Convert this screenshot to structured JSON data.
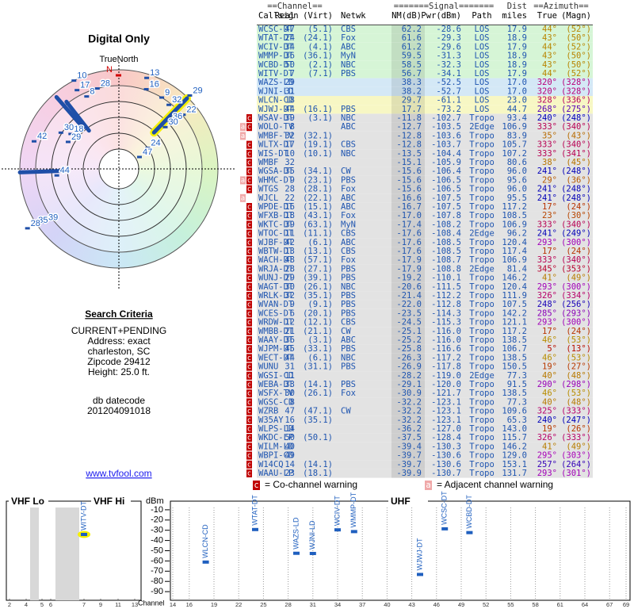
{
  "header": {
    "title": "Digital Only",
    "north_label": "TrueNorth",
    "north_marker": "N"
  },
  "polar": {
    "points": [
      {
        "label": "10",
        "azimuth": 333,
        "r": 1.0
      },
      {
        "label": "17",
        "azimuth": 332,
        "r": 0.9
      },
      {
        "label": "8",
        "azimuth": 336,
        "r": 0.8
      },
      {
        "label": "28",
        "azimuth": 345,
        "r": 0.84
      },
      {
        "label": "13",
        "azimuth": 17,
        "r": 0.96
      },
      {
        "label": "16",
        "azimuth": 19,
        "r": 0.85
      },
      {
        "label": "9",
        "azimuth": 31,
        "r": 0.84
      },
      {
        "label": "32",
        "azimuth": 38,
        "r": 0.82
      },
      {
        "label": "29",
        "azimuth": 44,
        "r": 1.03
      },
      {
        "label": "22",
        "azimuth": 50,
        "r": 0.85
      },
      {
        "label": "36",
        "azimuth": 47,
        "r": 0.7
      },
      {
        "label": "30",
        "azimuth": 48,
        "r": 0.63
      },
      {
        "label": "24",
        "azimuth": 54,
        "r": 0.36
      },
      {
        "label": "47",
        "azimuth": 60,
        "r": 0.24
      },
      {
        "label": "42",
        "azimuth": 288,
        "r": 0.9
      },
      {
        "label": "44",
        "azimuth": 264,
        "r": 0.63
      },
      {
        "label": "39",
        "azimuth": 234,
        "r": 0.92
      },
      {
        "label": "35",
        "azimuth": 236,
        "r": 1.02
      },
      {
        "label": "28",
        "azimuth": 237,
        "r": 1.1
      },
      {
        "label": "30",
        "azimuth": 302,
        "r": 0.69
      },
      {
        "label": "18",
        "azimuth": 306,
        "r": 0.6
      },
      {
        "label": "29",
        "azimuth": 298,
        "r": 0.58
      }
    ],
    "bars": [
      {
        "azimuth": 44,
        "from": 0.51,
        "to": 0.99,
        "highlight": true
      },
      {
        "azimuth": 268,
        "from": 0.6,
        "to": 1.0,
        "highlight": false
      },
      {
        "azimuth": 319,
        "from": 0.55,
        "to": 0.96,
        "highlight": false
      },
      {
        "azimuth": 322,
        "from": 0.49,
        "to": 0.86,
        "highlight": false
      }
    ]
  },
  "search": {
    "title": "Search Criteria",
    "lines": [
      "CURRENT+PENDING",
      "Address: exact",
      "charleston, SC",
      "Zipcode 29412",
      "Height: 25.0 ft."
    ],
    "datecode_title": "db datecode",
    "datecode": "201204091018"
  },
  "link": "www.tvfool.com",
  "table": {
    "group_headers": [
      "==Channel==",
      "=======Signal=======",
      "Dist",
      "==Azimuth=="
    ],
    "columns": [
      "Callsign",
      "Real",
      "(Virt)",
      "Netwk",
      "NM(dB)",
      "Pwr(dBm)",
      "Path",
      "miles",
      "True",
      "(Magn)"
    ],
    "rows": [
      [
        "WCSC-DT",
        "47",
        "(5.1)",
        "CBS",
        "62.2",
        "-28.6",
        "LOS",
        "17.9",
        "44°",
        "(52°)"
      ],
      [
        "WTAT-DT",
        "24",
        "(24.1)",
        "Fox",
        "61.6",
        "-29.3",
        "LOS",
        "18.9",
        "43°",
        "(50°)"
      ],
      [
        "WCIV-DT",
        "34",
        "(4.1)",
        "ABC",
        "61.2",
        "-29.6",
        "LOS",
        "17.9",
        "44°",
        "(52°)"
      ],
      [
        "WMMP-DT",
        "36",
        "(36.1)",
        "MyN",
        "59.5",
        "-31.3",
        "LOS",
        "18.9",
        "43°",
        "(50°)"
      ],
      [
        "WCBD-DT",
        "50",
        "(2.1)",
        "NBC",
        "58.5",
        "-32.3",
        "LOS",
        "18.9",
        "43°",
        "(50°)"
      ],
      [
        "WITV-DT",
        "7",
        "(7.1)",
        "PBS",
        "56.7",
        "-34.1",
        "LOS",
        "17.9",
        "44°",
        "(52°)"
      ],
      [
        "WAZS-LD",
        "29",
        null,
        null,
        "38.3",
        "-52.5",
        "LOS",
        "17.0",
        "320°",
        "(328°)"
      ],
      [
        "WJNI-LD",
        "31",
        null,
        null,
        "38.2",
        "-52.7",
        "LOS",
        "17.0",
        "320°",
        "(328°)"
      ],
      [
        "WLCN-CD",
        "18",
        null,
        null,
        "29.7",
        "-61.1",
        "LOS",
        "23.0",
        "328°",
        "(336°)"
      ],
      [
        "WJWJ-DT",
        "44",
        "(16.1)",
        "PBS",
        "17.7",
        "-73.2",
        "LOS",
        "44.7",
        "268°",
        "(275°)"
      ],
      [
        "WSAV-DT",
        "39",
        "(3.1)",
        "NBC",
        "-11.8",
        "-102.7",
        "Tropo",
        "93.4",
        "240°",
        "(248°)"
      ],
      [
        "WOLO-TV",
        "8",
        null,
        "ABC",
        "-12.7",
        "-103.5",
        "2Edge",
        "106.9",
        "333°",
        "(340°)"
      ],
      [
        "WMBF-TV",
        "32",
        "(32.1)",
        null,
        "-12.8",
        "-103.6",
        "Tropo",
        "83.9",
        "35°",
        "(43°)"
      ],
      [
        "WLTX-DT",
        "17",
        "(19.1)",
        "CBS",
        "-12.8",
        "-103.7",
        "Tropo",
        "105.7",
        "333°",
        "(340°)"
      ],
      [
        "WIS-DT",
        "10",
        "(10.1)",
        "NBC",
        "-13.5",
        "-104.4",
        "Tropo",
        "107.2",
        "333°",
        "(341°)"
      ],
      [
        "WMBF",
        "32",
        null,
        null,
        "-15.1",
        "-105.9",
        "Tropo",
        "80.6",
        "38°",
        "(45°)"
      ],
      [
        "WGSA-DT",
        "35",
        "(34.1)",
        "CW",
        "-15.6",
        "-106.4",
        "Tropo",
        "96.0",
        "241°",
        "(248°)"
      ],
      [
        "WHMC-DT",
        "9",
        "(23.1)",
        "PBS",
        "-15.6",
        "-106.5",
        "Tropo",
        "95.6",
        "29°",
        "(36°)"
      ],
      [
        "WTGS",
        "28",
        "(28.1)",
        "Fox",
        "-15.6",
        "-106.5",
        "Tropo",
        "96.0",
        "241°",
        "(248°)"
      ],
      [
        "WJCL",
        "22",
        "(22.1)",
        "ABC",
        "-16.6",
        "-107.5",
        "Tropo",
        "95.5",
        "241°",
        "(248°)"
      ],
      [
        "WPDE-DT",
        "16",
        "(15.1)",
        "ABC",
        "-16.7",
        "-107.5",
        "Tropo",
        "117.2",
        "17°",
        "(24°)"
      ],
      [
        "WFXB-DT",
        "18",
        "(43.1)",
        "Fox",
        "-17.0",
        "-107.8",
        "Tropo",
        "108.5",
        "23°",
        "(30°)"
      ],
      [
        "WKTC-DT",
        "39",
        "(63.1)",
        "MyN",
        "-17.4",
        "-108.2",
        "Tropo",
        "106.9",
        "333°",
        "(340°)"
      ],
      [
        "WTOC-DT",
        "11",
        "(11.1)",
        "CBS",
        "-17.6",
        "-108.4",
        "2Edge",
        "96.2",
        "241°",
        "(249°)"
      ],
      [
        "WJBF-DT",
        "42",
        "(6.1)",
        "ABC",
        "-17.6",
        "-108.5",
        "Tropo",
        "120.4",
        "293°",
        "(300°)"
      ],
      [
        "WBTW-DT",
        "13",
        "(13.1)",
        "CBS",
        "-17.6",
        "-108.5",
        "Tropo",
        "117.4",
        "17°",
        "(24°)"
      ],
      [
        "WACH-DT",
        "48",
        "(57.1)",
        "Fox",
        "-17.9",
        "-108.7",
        "Tropo",
        "106.9",
        "333°",
        "(340°)"
      ],
      [
        "WRJA-DT",
        "28",
        "(27.1)",
        "PBS",
        "-17.9",
        "-108.8",
        "2Edge",
        "81.4",
        "345°",
        "(353°)"
      ],
      [
        "WUNJ-DT",
        "29",
        "(39.1)",
        "PBS",
        "-19.2",
        "-110.1",
        "Tropo",
        "146.2",
        "41°",
        "(49°)"
      ],
      [
        "WAGT-DT",
        "30",
        "(26.1)",
        "NBC",
        "-20.6",
        "-111.5",
        "Tropo",
        "120.4",
        "293°",
        "(300°)"
      ],
      [
        "WRLK-DT",
        "32",
        "(35.1)",
        "PBS",
        "-21.4",
        "-112.2",
        "Tropo",
        "111.9",
        "326°",
        "(334°)"
      ],
      [
        "WVAN-DT",
        "9",
        "(9.1)",
        "PBS",
        "-22.0",
        "-112.8",
        "Tropo",
        "107.5",
        "248°",
        "(256°)"
      ],
      [
        "WCES-DT",
        "6",
        "(20.1)",
        "PBS",
        "-23.5",
        "-114.3",
        "Tropo",
        "142.2",
        "285°",
        "(293°)"
      ],
      [
        "WRDW-DT",
        "12",
        "(12.1)",
        "CBS",
        "-24.5",
        "-115.3",
        "Tropo",
        "121.1",
        "293°",
        "(300°)"
      ],
      [
        "WMBB-DT",
        "21",
        "(21.1)",
        "CW",
        "-25.1",
        "-116.0",
        "Tropo",
        "117.2",
        "17°",
        "(24°)"
      ],
      [
        "WAAY-DT",
        "36",
        "(3.1)",
        "ABC",
        "-25.2",
        "-116.0",
        "Tropo",
        "138.5",
        "46°",
        "(53°)"
      ],
      [
        "WJPM-DT",
        "45",
        "(33.1)",
        "PBS",
        "-25.8",
        "-116.6",
        "Tropo",
        "106.7",
        "5°",
        "(13°)"
      ],
      [
        "WECT-DT",
        "44",
        "(6.1)",
        "NBC",
        "-26.3",
        "-117.2",
        "Tropo",
        "138.5",
        "46°",
        "(53°)"
      ],
      [
        "WUNU",
        "31",
        "(31.1)",
        "PBS",
        "-26.9",
        "-117.8",
        "Tropo",
        "150.5",
        "19°",
        "(27°)"
      ],
      [
        "WGSI-CD",
        "11",
        null,
        null,
        "-28.2",
        "-119.0",
        "2Edge",
        "77.3",
        "40°",
        "(48°)"
      ],
      [
        "WEBA-DT",
        "33",
        "(14.1)",
        "PBS",
        "-29.1",
        "-120.0",
        "Tropo",
        "91.5",
        "290°",
        "(298°)"
      ],
      [
        "WSFX-TV",
        "30",
        "(26.1)",
        "Fox",
        "-30.9",
        "-121.7",
        "Tropo",
        "138.5",
        "46°",
        "(53°)"
      ],
      [
        "WGSC-CD",
        "8",
        null,
        null,
        "-32.2",
        "-123.1",
        "Tropo",
        "77.3",
        "40°",
        "(48°)"
      ],
      [
        "WZRB",
        "47",
        "(47.1)",
        "CW",
        "-32.2",
        "-123.1",
        "Tropo",
        "109.6",
        "325°",
        "(333°)"
      ],
      [
        "W35AY",
        "16",
        "(35.1)",
        null,
        "-32.2",
        "-123.1",
        "Tropo",
        "65.3",
        "240°",
        "(247°)"
      ],
      [
        "WLPS-LD",
        "14",
        null,
        null,
        "-36.2",
        "-127.0",
        "Tropo",
        "143.0",
        "19°",
        "(26°)"
      ],
      [
        "WKDC-LP",
        "50",
        "(50.1)",
        null,
        "-37.5",
        "-128.4",
        "Tropo",
        "115.7",
        "326°",
        "(333°)"
      ],
      [
        "WILM-LD",
        "40",
        null,
        null,
        "-39.4",
        "-130.3",
        "Tropo",
        "146.2",
        "41°",
        "(49°)"
      ],
      [
        "WBPI-CD",
        "49",
        null,
        null,
        "-39.7",
        "-130.6",
        "Tropo",
        "129.0",
        "295°",
        "(303°)"
      ],
      [
        "W14CQ",
        "14",
        "(14.1)",
        null,
        "-39.7",
        "-130.6",
        "Tropo",
        "153.1",
        "257°",
        "(264°)"
      ],
      [
        "WAAU-LP",
        "23",
        "(18.1)",
        null,
        "-39.9",
        "-130.7",
        "Tropo",
        "131.7",
        "293°",
        "(301°)"
      ]
    ],
    "warnings": [
      [],
      [],
      [],
      [],
      [],
      [],
      [],
      [],
      [],
      [],
      [
        "c"
      ],
      [
        "a",
        "c"
      ],
      [
        "a"
      ],
      [
        "c"
      ],
      [
        "c"
      ],
      [
        "c"
      ],
      [
        "c"
      ],
      [
        "a",
        "c"
      ],
      [
        "c"
      ],
      [
        "a"
      ],
      [
        "c"
      ],
      [
        "c"
      ],
      [
        "c"
      ],
      [
        "c"
      ],
      [
        "c"
      ],
      [
        "c"
      ],
      [
        "c"
      ],
      [
        "c"
      ],
      [
        "c"
      ],
      [
        "c"
      ],
      [
        "c"
      ],
      [
        "c"
      ],
      [
        "c"
      ],
      [
        "c"
      ],
      [
        "c"
      ],
      [
        "c"
      ],
      [
        "c"
      ],
      [
        "c"
      ],
      [
        "c"
      ],
      [
        "c"
      ],
      [
        "c"
      ],
      [
        "c"
      ],
      [
        "c"
      ],
      [
        "c"
      ],
      [
        "c"
      ],
      [
        "c"
      ],
      [
        "c"
      ],
      [
        "c"
      ],
      [
        "c"
      ],
      [
        "c"
      ],
      [
        "c"
      ]
    ]
  },
  "legend": {
    "co_channel": {
      "marker": "c",
      "text": "= Co-channel warning"
    },
    "adjacent": {
      "marker": "a",
      "text": "= Adjacent channel warning"
    }
  },
  "chart_data": [
    {
      "type": "spectrum",
      "titles": [
        "VHF Lo",
        "VHF Hi"
      ],
      "x": [
        7
      ],
      "values": [
        -34.1
      ],
      "labels": [
        "WITV-DT"
      ],
      "xlim": [
        2,
        13
      ],
      "xticks": [
        2,
        4,
        5,
        6,
        7,
        9,
        11,
        13
      ],
      "ylim": [
        -100,
        0
      ],
      "color": "#1f5fbf",
      "highlight_color": "#f5f000"
    },
    {
      "type": "spectrum",
      "titles": [
        "UHF"
      ],
      "ylabel": "dBm",
      "xlabel": "Channel",
      "x": [
        18,
        24,
        29,
        31,
        34,
        36,
        44,
        47,
        50
      ],
      "values": [
        -61.1,
        -29.3,
        -52.5,
        -52.7,
        -29.6,
        -31.3,
        -73.2,
        -28.6,
        -32.3
      ],
      "labels": [
        "WLCN-CD",
        "WTAT-DT",
        "WAZS-LD",
        "WJNI-LD",
        "WCIV-DT",
        "WMMP-DT",
        "WJWJ-DT",
        "WCSC-DT",
        "WCBD-DT"
      ],
      "xlim": [
        14,
        69
      ],
      "xticks": [
        14,
        16,
        19,
        22,
        25,
        28,
        31,
        34,
        37,
        40,
        43,
        46,
        49,
        52,
        55,
        58,
        61,
        64,
        67,
        69
      ],
      "ylim": [
        -100,
        0
      ],
      "yticks": [
        -10,
        -20,
        -30,
        -40,
        -50,
        -60,
        -70,
        -80,
        -90
      ],
      "color": "#1f5fbf",
      "grid": true
    }
  ]
}
